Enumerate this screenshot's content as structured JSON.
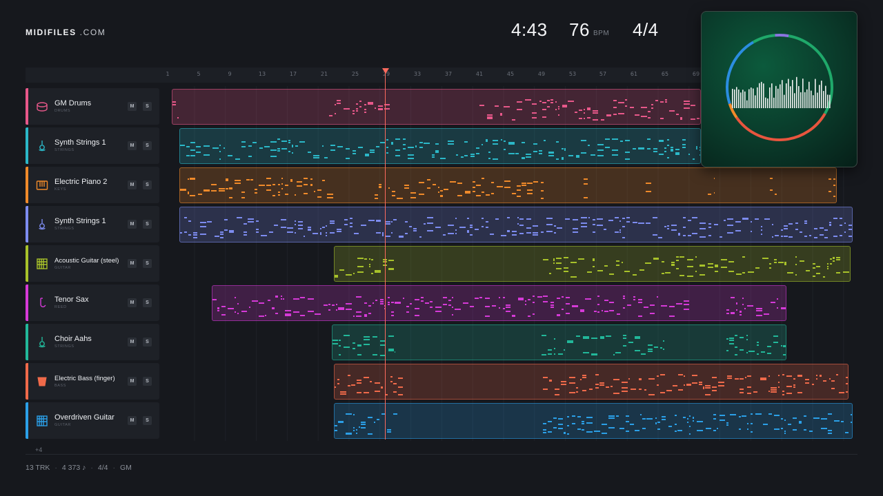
{
  "header": {
    "logo_bold": "MIDIFILES",
    "logo_light": ".COM",
    "duration": "4:43",
    "tempo": "76",
    "tempo_unit": "BPM",
    "time_signature": "4/4"
  },
  "ruler": {
    "ticks": [
      "1",
      "5",
      "9",
      "13",
      "17",
      "21",
      "25",
      "29",
      "33",
      "37",
      "41",
      "45",
      "49",
      "53",
      "57",
      "61",
      "65",
      "69"
    ]
  },
  "tracks": [
    {
      "name": "GM Drums",
      "category": "DRUMS",
      "color": "#e8588a",
      "icon": "drum-icon",
      "mute": "M",
      "solo": "S"
    },
    {
      "name": "Synth Strings 1",
      "category": "STRINGS",
      "color": "#2bb8c8",
      "icon": "violin-icon",
      "mute": "M",
      "solo": "S"
    },
    {
      "name": "Electric Piano 2",
      "category": "KEYS",
      "color": "#f08a2a",
      "icon": "piano-icon",
      "mute": "M",
      "solo": "S"
    },
    {
      "name": "Synth Strings 1",
      "category": "STRINGS",
      "color": "#7d8cf0",
      "icon": "violin-icon",
      "mute": "M",
      "solo": "S"
    },
    {
      "name": "Acoustic Guitar (steel)",
      "category": "GUITAR",
      "color": "#a8c22a",
      "icon": "guitar-icon",
      "mute": "M",
      "solo": "S"
    },
    {
      "name": "Tenor Sax",
      "category": "REED",
      "color": "#d63ad8",
      "icon": "sax-icon",
      "mute": "M",
      "solo": "S"
    },
    {
      "name": "Choir Aahs",
      "category": "STRINGS",
      "color": "#22b89a",
      "icon": "violin-icon",
      "mute": "M",
      "solo": "S"
    },
    {
      "name": "Electric Bass (finger)",
      "category": "BASS",
      "color": "#f06a4a",
      "icon": "bass-icon",
      "mute": "M",
      "solo": "S"
    },
    {
      "name": "Overdriven Guitar",
      "category": "GUITAR",
      "color": "#2ba0e8",
      "icon": "guitar-icon",
      "mute": "M",
      "solo": "S"
    }
  ],
  "more_tracks": "+4",
  "footer": {
    "tracks": "13 TRK",
    "notes": "4 373 ♪",
    "meter": "4/4",
    "standard": "GM"
  }
}
